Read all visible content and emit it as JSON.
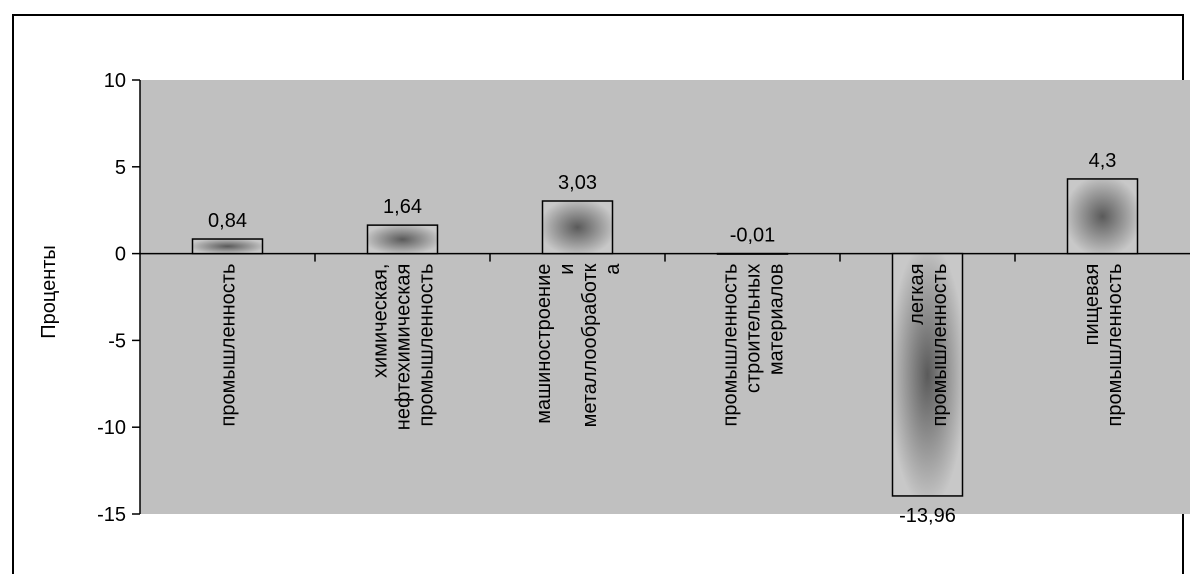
{
  "chart_data": {
    "type": "bar",
    "title": "",
    "xlabel": "",
    "ylabel": "Проценты",
    "ylim": [
      -15,
      10
    ],
    "yticks": [
      10,
      5,
      0,
      -5,
      -10,
      -15
    ],
    "ytick_labels": [
      "10",
      "5",
      "0",
      "-5",
      "-10",
      "-15"
    ],
    "grid": false,
    "legend": "none",
    "plot_background": "#c0c0c0",
    "bar_fill_edge": "#c8c8c8",
    "bar_fill_center": "#5a5a5a",
    "categories": [
      [
        "промышленность"
      ],
      [
        "химическая,",
        "нефтехимическая",
        "промышленность"
      ],
      [
        "машиностроение",
        "и",
        "металлообработк",
        "а"
      ],
      [
        "промышленность",
        "строительных",
        "материалов"
      ],
      [
        "легкая",
        "промышленность"
      ],
      [
        "пищевая",
        "промышленность"
      ]
    ],
    "values": [
      0.84,
      1.64,
      3.03,
      -0.01,
      -13.96,
      4.3
    ],
    "data_labels": [
      "0,84",
      "1,64",
      "3,03",
      "-0,01",
      "-13,96",
      "4,3"
    ]
  }
}
